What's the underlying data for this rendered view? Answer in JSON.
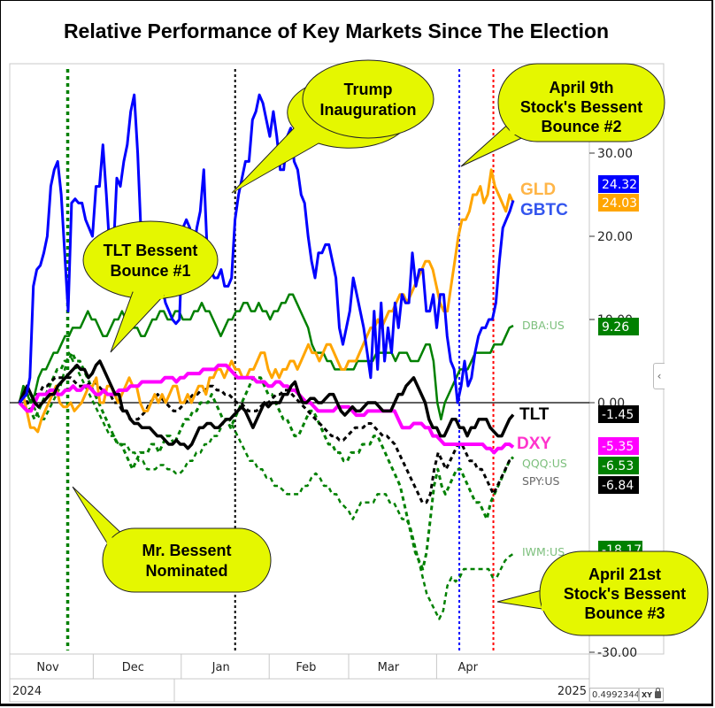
{
  "title": "Relative Performance of Key Markets Since The Election",
  "chart_data": {
    "type": "line",
    "title": "Relative Performance of Key Markets Since The Election",
    "xlabel": "",
    "ylabel": "",
    "ylim": [
      -30,
      38
    ],
    "y_ticks": [
      "30.00",
      "20.00",
      "10.00",
      "0.00",
      "-30.00"
    ],
    "x_months": [
      "Nov",
      "Dec",
      "Jan",
      "Feb",
      "Mar",
      "Apr"
    ],
    "x_years": [
      "2024",
      "2025"
    ],
    "x_range": [
      "2024-11-05",
      "2025-04-28"
    ],
    "zero_line": true,
    "series": [
      {
        "name": "GBTC",
        "color": "#0000ff",
        "style": "solid",
        "width": 3,
        "last": "24.32",
        "label_style": "big",
        "values": [
          0,
          0.5,
          1,
          3,
          14,
          16,
          16.5,
          18,
          20,
          26,
          28,
          29,
          25,
          18,
          11,
          24,
          24.5,
          24,
          24,
          22,
          21,
          20,
          26,
          26,
          31,
          25,
          18,
          18,
          27,
          26,
          29,
          31,
          35,
          37,
          30,
          20,
          18,
          18,
          14,
          21,
          16,
          14,
          12,
          11,
          10,
          9.5,
          10,
          21,
          22,
          21,
          18,
          21,
          23,
          28,
          18,
          16,
          15,
          15,
          16,
          14,
          14,
          15,
          22,
          25,
          27,
          29,
          29,
          34,
          35,
          37,
          36,
          34,
          32,
          35,
          32,
          28,
          28,
          32,
          33,
          29,
          28,
          25,
          24,
          20,
          17,
          15,
          18,
          18,
          19,
          19,
          17,
          15,
          9,
          7,
          9,
          11,
          15,
          13,
          11,
          9,
          6,
          3,
          11,
          4,
          12,
          5,
          9,
          6,
          12,
          9,
          13,
          12,
          12,
          18,
          14,
          16,
          16,
          11,
          11,
          13,
          9,
          13,
          13,
          8,
          5,
          4,
          0,
          2,
          5,
          2,
          3,
          6,
          8,
          9,
          9,
          10,
          10,
          12,
          17,
          21,
          22,
          23,
          24.32
        ]
      },
      {
        "name": "GLD",
        "color": "#ffa500",
        "style": "solid",
        "width": 3,
        "last": "24.03",
        "label_style": "big",
        "values": [
          0,
          1,
          -1,
          -3,
          -3,
          -3.5,
          -2,
          -1,
          0,
          1,
          2,
          0,
          -0.5,
          -0.5,
          0,
          -1,
          -0.5,
          0,
          1,
          2,
          2,
          3,
          0,
          0,
          2,
          2,
          1,
          0,
          1,
          2,
          3,
          2,
          2,
          0,
          -1,
          -1,
          0,
          1,
          0,
          1,
          0,
          1,
          2,
          2,
          0,
          0,
          1,
          0,
          1,
          2,
          2,
          1,
          3,
          3,
          4,
          4,
          3,
          4,
          5,
          4,
          4,
          3,
          3,
          4,
          4,
          5,
          6,
          6,
          4,
          3,
          4,
          3,
          4,
          4,
          5,
          5,
          4,
          5,
          6,
          7,
          6,
          6,
          5,
          6,
          7,
          7,
          6,
          5,
          4,
          4,
          5,
          5,
          5,
          6,
          7,
          8,
          9,
          9,
          10,
          9,
          10,
          11,
          11,
          12,
          13,
          13,
          12,
          13,
          14,
          15,
          16,
          17,
          17,
          16,
          14,
          12,
          11,
          11,
          14,
          17,
          20,
          22,
          22,
          23,
          25,
          25,
          26,
          24,
          25,
          28,
          26,
          25,
          24,
          23,
          25,
          24.03
        ]
      },
      {
        "name": "DBA:US",
        "color": "#008000",
        "style": "solid",
        "width": 2.5,
        "last": "9.26",
        "label_style": "small",
        "values": [
          0,
          2,
          1,
          0,
          1,
          3,
          4,
          4,
          5,
          6,
          6,
          7,
          8,
          8,
          9,
          9,
          9,
          10,
          11,
          10,
          10,
          9,
          8,
          8,
          9,
          10,
          10,
          11,
          10,
          10,
          9,
          9,
          8,
          8,
          9,
          10,
          10,
          11,
          11,
          10,
          10,
          11,
          11,
          10,
          10,
          10,
          11,
          11,
          12,
          11,
          11,
          10,
          9,
          8,
          9,
          10,
          10,
          11,
          11,
          12,
          12,
          11,
          11,
          12,
          11,
          11,
          10,
          11,
          11,
          12,
          12,
          13,
          13,
          12,
          11,
          10,
          9,
          7,
          6,
          6,
          6,
          5,
          5,
          4,
          4,
          4,
          4,
          4,
          4,
          5,
          5,
          5,
          5,
          5,
          6,
          6,
          6,
          6,
          6,
          5,
          6,
          6,
          6,
          5,
          5,
          5,
          6,
          7,
          7,
          5,
          0,
          -2,
          0,
          1,
          2,
          3,
          4,
          4,
          4,
          5,
          6,
          6,
          6,
          6,
          6,
          7,
          7,
          7,
          8,
          9,
          9.26
        ]
      },
      {
        "name": "TLT",
        "color": "#000000",
        "style": "solid",
        "width": 3.5,
        "last": "-1.45",
        "label_style": "big",
        "values": [
          0,
          1,
          2,
          1,
          0,
          -0.5,
          0,
          0.5,
          1,
          1,
          2,
          2.5,
          3,
          3.5,
          4,
          4.5,
          4,
          4,
          3,
          3.5,
          4.5,
          5,
          4,
          3,
          2,
          1,
          1,
          -1,
          -1,
          -2,
          -2.5,
          -2.5,
          -3,
          -3,
          -3,
          -3.5,
          -4,
          -4,
          -4.5,
          -5,
          -5,
          -4.5,
          -5,
          -5,
          -5.5,
          -5,
          -4,
          -3,
          -3,
          -2.5,
          -2.5,
          -3,
          -3,
          -2.5,
          -2,
          -2,
          -1.5,
          -1,
          -0.5,
          -1,
          -2,
          -3,
          -2,
          -1,
          0,
          -0.5,
          0,
          0,
          0,
          1,
          1,
          2,
          2.5,
          1,
          0,
          0,
          0.5,
          0.5,
          0,
          0,
          0.5,
          1,
          1,
          0,
          -1,
          -1.5,
          -1,
          -0.5,
          -1,
          -1,
          -0.5,
          0,
          0,
          0,
          -0.5,
          -1,
          -1,
          -1,
          0,
          1,
          1,
          2,
          2.5,
          3,
          2,
          1,
          0,
          -2,
          -3,
          -3,
          -4,
          -4,
          -3,
          -2,
          -2,
          -3,
          -3,
          -4,
          -3,
          -3,
          -2,
          -2,
          -2,
          -3,
          -3.5,
          -4,
          -4,
          -3,
          -2,
          -1.45
        ]
      },
      {
        "name": "DXY",
        "color": "#ff00ff",
        "style": "solid",
        "width": 4,
        "last": "-5.35",
        "label_style": "big",
        "values": [
          0,
          -0.5,
          -1,
          -1,
          0,
          1,
          1,
          1,
          1.5,
          1.5,
          1,
          1,
          1.5,
          1.5,
          2,
          1.5,
          1.5,
          2,
          2,
          1.5,
          1,
          1,
          1.5,
          1,
          1,
          1,
          1.5,
          1.5,
          1.5,
          2,
          2,
          2,
          2.5,
          2.5,
          2.5,
          2.5,
          2.5,
          2.5,
          3,
          3,
          3,
          2.5,
          3,
          3,
          3.5,
          3.5,
          3.5,
          3.5,
          4,
          4,
          4,
          4,
          4.5,
          4.5,
          4.5,
          4,
          3.5,
          3,
          3,
          3,
          3,
          3,
          2.5,
          2.5,
          2.5,
          2,
          2,
          2.5,
          2.5,
          2,
          2,
          1.5,
          1.5,
          1,
          0.5,
          0,
          0,
          -0.5,
          -1,
          -1,
          -1,
          -1,
          -1,
          -0.5,
          -0.5,
          -0.5,
          -0.5,
          -1,
          -1.5,
          -1.5,
          -1.5,
          -1,
          -1,
          -1,
          -1,
          -1,
          -1,
          -1,
          -1,
          -2,
          -3,
          -3,
          -3,
          -2.5,
          -2.5,
          -2.5,
          -3,
          -3,
          -4,
          -4,
          -4.5,
          -5,
          -5,
          -5,
          -5,
          -5,
          -5,
          -5,
          -5,
          -5,
          -5,
          -5,
          -5.5,
          -5.5,
          -6,
          -5.5,
          -5.5,
          -5,
          -5,
          -5.35
        ]
      },
      {
        "name": "QQQ:US",
        "color": "#008000",
        "style": "dashed",
        "width": 3,
        "last": "-6.53",
        "label_style": "small",
        "values": [
          0,
          1,
          0,
          -1,
          -2,
          -1,
          0,
          1,
          2,
          3,
          4,
          4,
          5,
          5,
          6,
          5,
          5,
          4,
          3,
          2,
          1,
          0,
          -1,
          -2,
          -3,
          -4,
          -5,
          -5,
          -6,
          -7,
          -8,
          -7,
          -6,
          -6,
          -6,
          -5,
          -5,
          -6,
          -5,
          -4,
          -4,
          -5,
          -4,
          -3,
          -2,
          -2,
          -1,
          -1,
          0,
          0,
          0,
          1,
          0,
          -1,
          -2,
          -2,
          -3,
          -2,
          -1,
          0,
          1,
          2,
          3,
          3,
          3,
          2,
          1,
          1,
          0,
          -1,
          -2,
          -2,
          -3,
          -4,
          -4,
          -3,
          -2,
          -1,
          -1,
          -2,
          -3,
          -4,
          -5,
          -5,
          -6,
          -6,
          -7,
          -7,
          -6,
          -6,
          -6,
          -5,
          -5,
          -5,
          -4,
          -4,
          -5,
          -6,
          -7,
          -8,
          -9,
          -10,
          -12,
          -14,
          -16,
          -18,
          -19,
          -20,
          -18,
          -14,
          -10,
          -8,
          -10,
          -11,
          -10,
          -9,
          -8,
          -8,
          -9,
          -10,
          -11,
          -12,
          -12,
          -13,
          -14,
          -12,
          -11,
          -10,
          -9,
          -8,
          -7,
          -6.53
        ]
      },
      {
        "name": "SPY:US",
        "color": "#000000",
        "style": "dashed",
        "width": 3,
        "last": "-6.84",
        "label_style": "small",
        "values": [
          0,
          1,
          0,
          0,
          1,
          1,
          2,
          2,
          2.5,
          3,
          3,
          3,
          3,
          3,
          2.5,
          2,
          2,
          2,
          2.5,
          2.5,
          2,
          1.5,
          1,
          1,
          0,
          0,
          -1,
          -1,
          -2,
          -2,
          -2,
          -1.5,
          -1,
          0,
          0.5,
          1,
          0.5,
          0,
          -0.5,
          -1,
          -1,
          -0.5,
          0,
          0.5,
          1,
          1,
          1.5,
          1.5,
          2,
          2,
          1.5,
          1.5,
          1,
          1,
          0.5,
          0,
          0,
          -0.5,
          -1,
          -1,
          -1,
          -0.5,
          0,
          0,
          0.5,
          1,
          1,
          1.5,
          1.5,
          1,
          0.5,
          0,
          -0.5,
          -1,
          -1.5,
          -2,
          -2.5,
          -3,
          -3.5,
          -4,
          -4,
          -4.5,
          -4.5,
          -4,
          -3.5,
          -3,
          -3,
          -3,
          -2.5,
          -2.5,
          -3,
          -3.5,
          -4,
          -4,
          -4.5,
          -5,
          -6,
          -7,
          -8,
          -9,
          -10,
          -11,
          -12,
          -12,
          -11,
          -8,
          -6,
          -7,
          -8,
          -7,
          -6,
          -5,
          -5,
          -6,
          -7,
          -7,
          -8,
          -8,
          -9,
          -10,
          -11,
          -10,
          -9,
          -8,
          -7,
          -6.84
        ]
      },
      {
        "name": "IWM:US",
        "color": "#008000",
        "style": "dashed",
        "width": 2.5,
        "last": "-18.17",
        "label_style": "small",
        "values": [
          0,
          2,
          1,
          0,
          -1,
          -2,
          -2,
          -1,
          0,
          1,
          2,
          4,
          6,
          5,
          4,
          3,
          2,
          1,
          0,
          -1,
          -2,
          -3,
          -4,
          -4,
          -5,
          -5,
          -5,
          -6,
          -6,
          -7,
          -7,
          -8,
          -8,
          -8,
          -7.5,
          -7.5,
          -8,
          -8,
          -8.5,
          -8.5,
          -8,
          -7,
          -7,
          -6,
          -6,
          -5,
          -5,
          -4,
          -4,
          -3,
          -2,
          -2,
          -3,
          -4,
          -5,
          -6,
          -7,
          -7,
          -8,
          -8,
          -9,
          -9,
          -10,
          -10,
          -10.5,
          -11,
          -11,
          -11,
          -11,
          -10,
          -10,
          -9,
          -8.5,
          -9,
          -10,
          -10,
          -11,
          -11,
          -12,
          -12.5,
          -13,
          -14,
          -13,
          -12,
          -12,
          -12,
          -12,
          -11,
          -11,
          -11,
          -12,
          -12,
          -13,
          -14,
          -14,
          -15,
          -17,
          -19,
          -21,
          -23,
          -24,
          -25,
          -26,
          -25,
          -22,
          -21,
          -21.5,
          -21,
          -20,
          -20,
          -20,
          -20,
          -20,
          -20,
          -20,
          -21,
          -21,
          -20,
          -19,
          -18.5,
          -18.17
        ]
      }
    ],
    "series_end_labels": [
      {
        "series": "GBTC",
        "value": "24.32",
        "bg": "#0000ff"
      },
      {
        "series": "GLD",
        "value": "24.03",
        "bg": "#ffa500"
      },
      {
        "series": "DBA:US",
        "value": "9.26",
        "bg": "#008000"
      },
      {
        "series": "TLT",
        "value": "-1.45",
        "bg": "#000000"
      },
      {
        "series": "DXY",
        "value": "-5.35",
        "bg": "#ff00ff"
      },
      {
        "series": "QQQ:US",
        "value": "-6.53",
        "bg": "#008000"
      },
      {
        "series": "SPY:US",
        "value": "-6.84",
        "bg": "#000000"
      },
      {
        "series": "IWM:US",
        "value": "-18.17",
        "bg": "#008000"
      }
    ],
    "event_lines": [
      {
        "name": "Mr. Bessent Nominated",
        "date": "2024-11-22",
        "color": "#008000"
      },
      {
        "name": "Trump Inauguration",
        "date": "2025-01-20",
        "color": "#000000"
      },
      {
        "name": "April 9th",
        "date": "2025-04-09",
        "color": "#0000ff"
      },
      {
        "name": "April 21st",
        "date": "2025-04-21",
        "color": "#ff0000"
      }
    ],
    "annotations": [
      {
        "id": "trump",
        "lines": [
          "Trump",
          "Inauguration"
        ]
      },
      {
        "id": "tlt",
        "lines": [
          "TLT Bessent",
          "Bounce #1"
        ]
      },
      {
        "id": "april9",
        "lines": [
          "April 9th",
          "Stock's Bessent",
          "Bounce #2"
        ]
      },
      {
        "id": "bessent",
        "lines": [
          "Mr. Bessent",
          "Nominated"
        ]
      },
      {
        "id": "april21",
        "lines": [
          "April 21st",
          "Stock's Bessent",
          "Bounce #3"
        ]
      }
    ]
  },
  "footer": {
    "readout_value": "0.4992344",
    "xy_label": "XY",
    "collapse_icon": "‹"
  }
}
